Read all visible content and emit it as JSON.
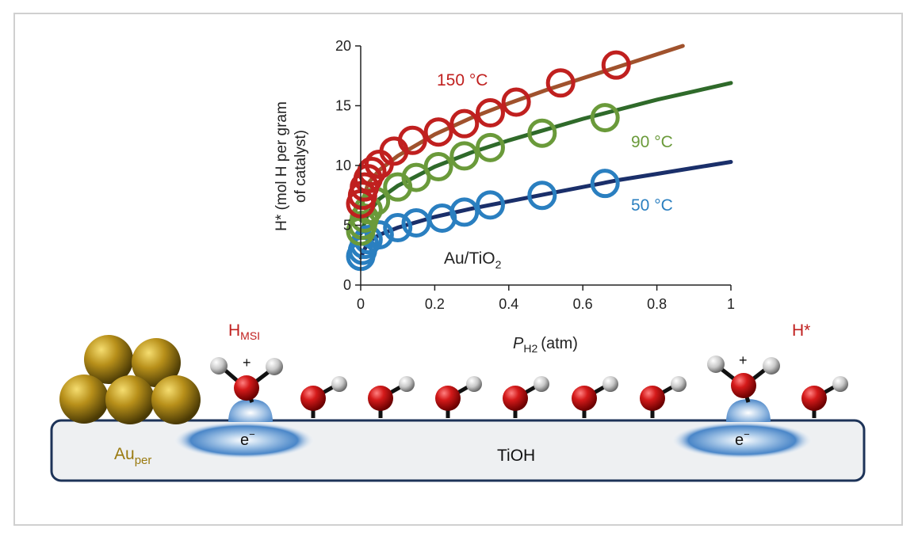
{
  "chart_data": {
    "type": "line",
    "xlabel_main": "P",
    "xlabel_sub": "H2",
    "xlabel_unit": "(atm)",
    "ylabel_line1": "H* (mol H per gram",
    "ylabel_line2": "of catalyst)",
    "xlim": [
      0,
      1
    ],
    "ylim": [
      0,
      20
    ],
    "x_ticks": [
      "0",
      "0.2",
      "0.4",
      "0.6",
      "0.8",
      "1"
    ],
    "y_ticks": [
      "0",
      "5",
      "10",
      "15",
      "20"
    ],
    "annotation_main": "Au/TiO",
    "annotation_sub": "2",
    "series": [
      {
        "name": "150 °C",
        "color": "#c0201f",
        "line_color": "#a0522d",
        "points": [
          [
            0.0,
            6.8
          ],
          [
            0.005,
            7.5
          ],
          [
            0.01,
            8.2
          ],
          [
            0.02,
            8.9
          ],
          [
            0.03,
            9.5
          ],
          [
            0.05,
            10.1
          ],
          [
            0.09,
            11.2
          ],
          [
            0.14,
            12.1
          ],
          [
            0.21,
            12.8
          ],
          [
            0.28,
            13.5
          ],
          [
            0.35,
            14.4
          ],
          [
            0.42,
            15.3
          ],
          [
            0.54,
            16.9
          ],
          [
            0.69,
            18.4
          ]
        ],
        "curve": [
          [
            0.0,
            6.5
          ],
          [
            0.02,
            8.5
          ],
          [
            0.05,
            9.6
          ],
          [
            0.1,
            10.8
          ],
          [
            0.2,
            12.6
          ],
          [
            0.3,
            14.0
          ],
          [
            0.4,
            15.2
          ],
          [
            0.5,
            16.3
          ],
          [
            0.6,
            17.3
          ],
          [
            0.7,
            18.3
          ],
          [
            0.8,
            19.3
          ],
          [
            0.87,
            20.0
          ]
        ]
      },
      {
        "name": "90 °C",
        "color": "#6a9a3a",
        "line_color": "#2f6a2a",
        "points": [
          [
            0.0,
            4.5
          ],
          [
            0.005,
            5.0
          ],
          [
            0.01,
            5.6
          ],
          [
            0.02,
            6.3
          ],
          [
            0.04,
            7.0
          ],
          [
            0.1,
            8.2
          ],
          [
            0.15,
            9.0
          ],
          [
            0.21,
            9.9
          ],
          [
            0.28,
            10.8
          ],
          [
            0.35,
            11.5
          ],
          [
            0.49,
            12.7
          ],
          [
            0.66,
            14.0
          ]
        ],
        "curve": [
          [
            0.0,
            4.3
          ],
          [
            0.02,
            6.0
          ],
          [
            0.05,
            7.2
          ],
          [
            0.1,
            8.3
          ],
          [
            0.2,
            9.9
          ],
          [
            0.3,
            11.1
          ],
          [
            0.4,
            12.1
          ],
          [
            0.5,
            13.0
          ],
          [
            0.6,
            13.9
          ],
          [
            0.7,
            14.7
          ],
          [
            0.8,
            15.5
          ],
          [
            0.9,
            16.2
          ],
          [
            1.0,
            16.9
          ]
        ]
      },
      {
        "name": "50 °C",
        "color": "#2a7fc0",
        "line_color": "#1a2f6a",
        "points": [
          [
            0.0,
            2.4
          ],
          [
            0.005,
            2.9
          ],
          [
            0.01,
            3.4
          ],
          [
            0.02,
            3.8
          ],
          [
            0.05,
            4.2
          ],
          [
            0.1,
            4.8
          ],
          [
            0.15,
            5.2
          ],
          [
            0.22,
            5.6
          ],
          [
            0.28,
            6.1
          ],
          [
            0.35,
            6.7
          ],
          [
            0.49,
            7.5
          ],
          [
            0.66,
            8.5
          ]
        ],
        "curve": [
          [
            0.0,
            2.3
          ],
          [
            0.02,
            3.6
          ],
          [
            0.05,
            4.2
          ],
          [
            0.1,
            4.8
          ],
          [
            0.2,
            5.7
          ],
          [
            0.3,
            6.4
          ],
          [
            0.4,
            7.0
          ],
          [
            0.5,
            7.6
          ],
          [
            0.6,
            8.2
          ],
          [
            0.7,
            8.8
          ],
          [
            0.8,
            9.3
          ],
          [
            0.9,
            9.8
          ],
          [
            1.0,
            10.3
          ]
        ]
      }
    ]
  },
  "schematic": {
    "label_hmsi_main": "H",
    "label_hmsi_sub": "MSI",
    "label_hstar": "H*",
    "label_au_main": "Au",
    "label_au_sub": "per",
    "label_tioh": "TiOH",
    "label_electron": "e",
    "label_minus": "−",
    "label_plus": "+",
    "hmsi_color": "#c0201f",
    "au_color": "#9a7a10"
  }
}
